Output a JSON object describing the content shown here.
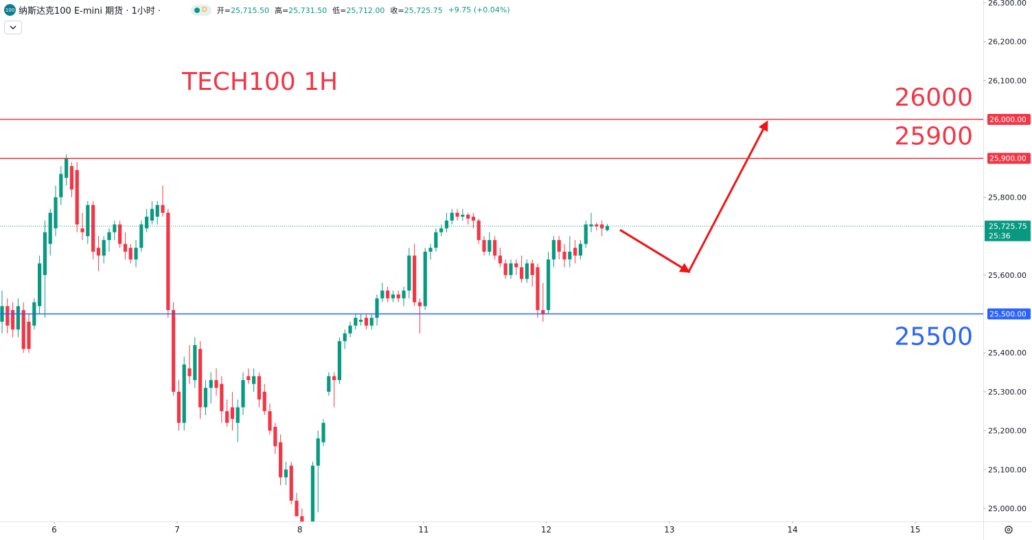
{
  "header": {
    "logo": "100",
    "symbol": "纳斯达克100 E-mini 期货 · 1小时 ·",
    "badge": "D",
    "ohlc": [
      {
        "label": "开=",
        "value": "25,715.50"
      },
      {
        "label": "高=",
        "value": "25,731.50"
      },
      {
        "label": "低=",
        "value": "25,712.00"
      },
      {
        "label": "收=",
        "value": "25,725.75"
      }
    ],
    "change": "+9.75 (+0.04%)"
  },
  "chart_data": {
    "type": "candlestick",
    "title": "TECH100 1H",
    "title_color": "#f23645",
    "up_color": "#089981",
    "down_color": "#f23645",
    "open": [
      25480,
      25520,
      25510,
      25460,
      25510,
      25480,
      25470,
      25520,
      25600,
      25680,
      25720,
      25800,
      25850,
      25880,
      25870,
      25720,
      25700,
      25780,
      25670,
      25650,
      25690,
      25710,
      25730,
      25680,
      25670,
      25640,
      25670,
      25720,
      25740,
      25750,
      25780,
      25760,
      25510,
      25300,
      25220,
      25360,
      25330,
      25410,
      25260,
      25310,
      25330,
      25320,
      25250,
      25260,
      25220,
      25260,
      25340,
      25320,
      25340,
      25300,
      25250,
      25210,
      25170,
      25080,
      25110,
      25020,
      24980,
      24920,
      24940,
      25110,
      25170,
      25300,
      25340,
      25330,
      25430,
      25450,
      25470,
      25480,
      25490,
      25470,
      25490,
      25540,
      25560,
      25540,
      25550,
      25540,
      25560,
      25650,
      25530,
      25520,
      25660,
      25670,
      25710,
      25720,
      25740,
      25760,
      25750,
      25755,
      25750,
      25740,
      25690,
      25660,
      25690,
      25650,
      25630,
      25600,
      25630,
      25620,
      25590,
      25630,
      25620,
      25510,
      25510,
      25640,
      25690,
      25660,
      25640,
      25670,
      25650,
      25680,
      25725,
      25730,
      25730,
      25715.5
    ],
    "high": [
      25560,
      25540,
      25530,
      25540,
      25530,
      25500,
      25540,
      25650,
      25740,
      25770,
      25830,
      25880,
      25910,
      25890,
      25890,
      25760,
      25790,
      25790,
      25700,
      25700,
      25720,
      25740,
      25740,
      25710,
      25680,
      25690,
      25740,
      25770,
      25790,
      25790,
      25830,
      25770,
      25530,
      25330,
      25390,
      25420,
      25440,
      25430,
      25330,
      25350,
      25360,
      25340,
      25280,
      25300,
      25280,
      25350,
      25360,
      25360,
      25350,
      25320,
      25270,
      25220,
      25190,
      25120,
      25120,
      25040,
      25000,
      24960,
      25120,
      25200,
      25230,
      25350,
      25350,
      25440,
      25460,
      25480,
      25500,
      25500,
      25500,
      25500,
      25550,
      25580,
      25570,
      25560,
      25560,
      25570,
      25670,
      25680,
      25540,
      25670,
      25680,
      25720,
      25730,
      25760,
      25770,
      25770,
      25770,
      25760,
      25760,
      25745,
      25700,
      25710,
      25700,
      25670,
      25640,
      25640,
      25640,
      25650,
      25640,
      25640,
      25630,
      25580,
      25660,
      25700,
      25700,
      25680,
      25700,
      25690,
      25690,
      25740,
      25760,
      25735,
      25740,
      25731.5
    ],
    "low": [
      25450,
      25450,
      25440,
      25440,
      25400,
      25400,
      25460,
      25500,
      25490,
      25650,
      25700,
      25780,
      25830,
      25800,
      25710,
      25690,
      25680,
      25640,
      25610,
      25630,
      25660,
      25690,
      25670,
      25640,
      25630,
      25620,
      25660,
      25710,
      25730,
      25730,
      25750,
      25490,
      25290,
      25200,
      25200,
      25320,
      25310,
      25230,
      25240,
      25270,
      25290,
      25220,
      25210,
      25200,
      25170,
      25240,
      25320,
      25300,
      25260,
      25240,
      25190,
      25140,
      25060,
      25060,
      25010,
      24980,
      24900,
      24880,
      24930,
      24990,
      25160,
      25290,
      25260,
      25320,
      25410,
      25440,
      25460,
      25470,
      25460,
      25460,
      25470,
      25530,
      25530,
      25530,
      25530,
      25520,
      25540,
      25520,
      25450,
      25510,
      25640,
      25660,
      25700,
      25710,
      25730,
      25740,
      25740,
      25730,
      25720,
      25680,
      25650,
      25650,
      25640,
      25620,
      25590,
      25590,
      25600,
      25580,
      25580,
      25570,
      25490,
      25480,
      25500,
      25620,
      25640,
      25620,
      25620,
      25630,
      25640,
      25670,
      25710,
      25715,
      25700,
      25712
    ],
    "close": [
      25520,
      25470,
      25460,
      25520,
      25410,
      25410,
      25530,
      25630,
      25710,
      25760,
      25800,
      25860,
      25900,
      25820,
      25730,
      25710,
      25780,
      25660,
      25650,
      25690,
      25710,
      25730,
      25680,
      25660,
      25640,
      25670,
      25730,
      25750,
      25770,
      25780,
      25760,
      25510,
      25300,
      25220,
      25370,
      25340,
      25420,
      25260,
      25310,
      25330,
      25310,
      25250,
      25220,
      25230,
      25260,
      25330,
      25330,
      25340,
      25280,
      25250,
      25200,
      25160,
      25080,
      25100,
      25020,
      24980,
      24920,
      24940,
      25110,
      25180,
      25220,
      25340,
      25330,
      25430,
      25450,
      25470,
      25490,
      25485,
      25470,
      25490,
      25540,
      25560,
      25540,
      25550,
      25540,
      25560,
      25650,
      25530,
      25520,
      25660,
      25670,
      25710,
      25720,
      25740,
      25760,
      25750,
      25755,
      25745,
      25740,
      25690,
      25660,
      25690,
      25650,
      25630,
      25600,
      25630,
      25620,
      25590,
      25630,
      25600,
      25510,
      25500,
      25640,
      25690,
      25660,
      25640,
      25660,
      25650,
      25680,
      25730,
      25730,
      25725,
      25720,
      25725.75
    ],
    "xlim": [
      -0.385,
      183.2
    ],
    "xticks": [
      {
        "value": 9.74,
        "label": "6"
      },
      {
        "value": 32.7,
        "label": "7"
      },
      {
        "value": 55.6,
        "label": "8"
      },
      {
        "value": 78.7,
        "label": "11"
      },
      {
        "value": 101.6,
        "label": "12"
      },
      {
        "value": 124.6,
        "label": "13"
      },
      {
        "value": 147.6,
        "label": "14"
      },
      {
        "value": 170.5,
        "label": "15"
      }
    ],
    "ylim": [
      24966.5,
      26307
    ],
    "yticks": [
      {
        "value": 26300,
        "label": "26,300.00"
      },
      {
        "value": 26200,
        "label": "26,200.00"
      },
      {
        "value": 26100,
        "label": "26,100.00"
      },
      {
        "value": 25800,
        "label": "25,800.00"
      },
      {
        "value": 25600,
        "label": "25,600.00"
      },
      {
        "value": 25400,
        "label": "25,400.00"
      },
      {
        "value": 25300,
        "label": "25,300.00"
      },
      {
        "value": 25200,
        "label": "25,200.00"
      },
      {
        "value": 25100,
        "label": "25,100.00"
      },
      {
        "value": 25000,
        "label": "25,000.00"
      }
    ],
    "hlines": [
      {
        "value": 26000,
        "axis_label": "26,000.00",
        "color": "#f23645",
        "label_side": "above"
      },
      {
        "value": 25900,
        "axis_label": "25,900.00",
        "color": "#f23645",
        "label_side": "above"
      },
      {
        "value": 25500,
        "axis_label": "25,500.00",
        "color": "#2962ff",
        "label_side": "below"
      }
    ],
    "last": {
      "value": 25725.75,
      "label": "25,725.75",
      "countdown": "25:36",
      "color": "#089981"
    }
  }
}
